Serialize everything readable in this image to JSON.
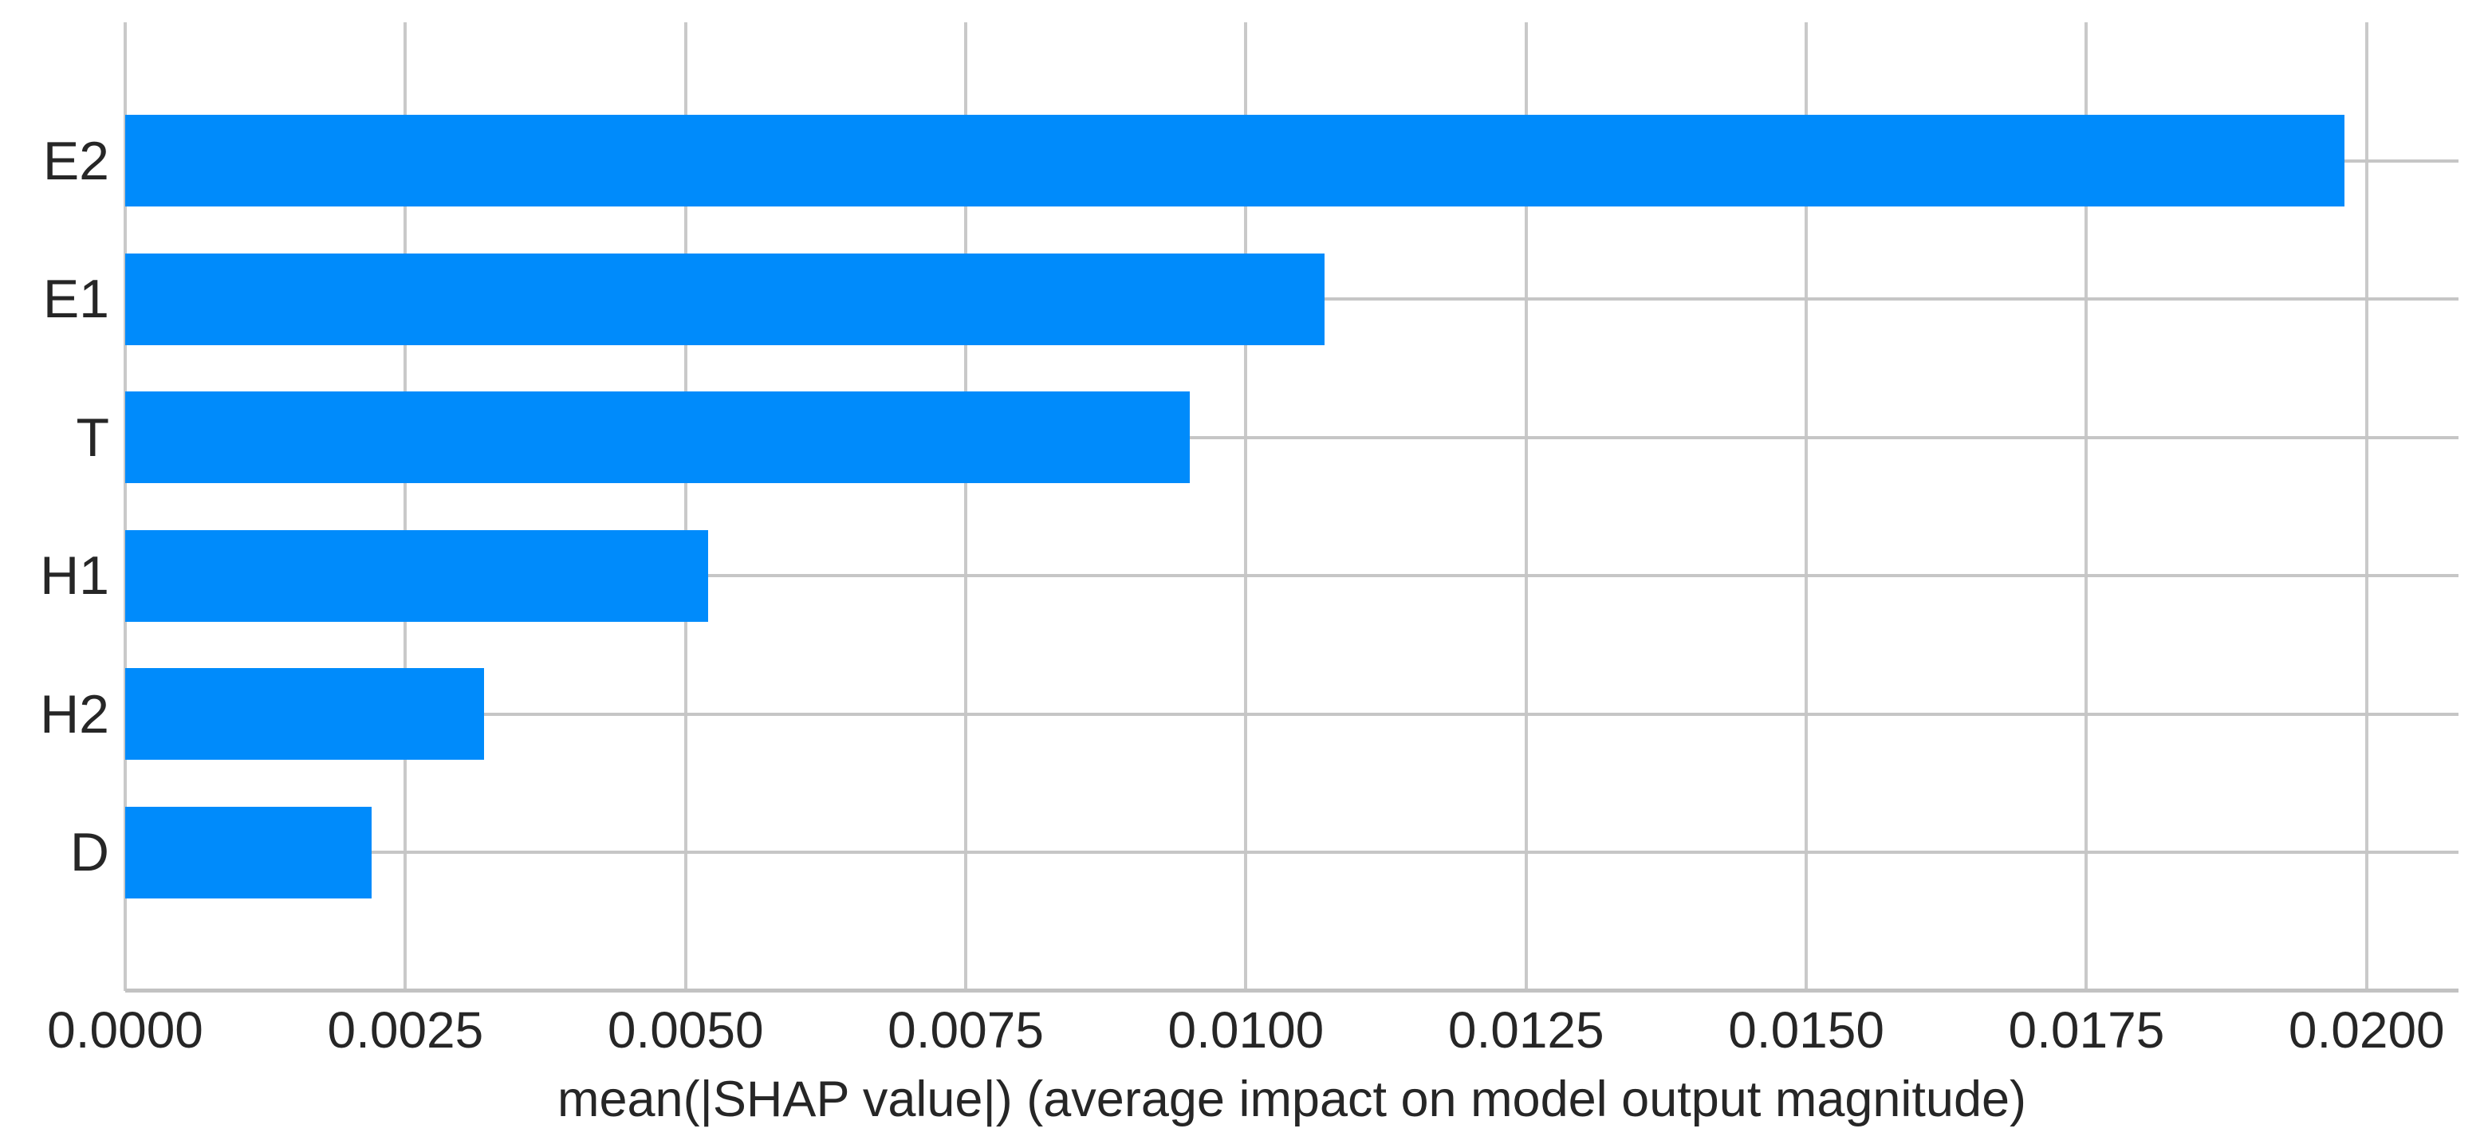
{
  "chart_data": {
    "type": "bar",
    "orientation": "horizontal",
    "title": "",
    "categories": [
      "E2",
      "E1",
      "T",
      "H1",
      "H2",
      "D"
    ],
    "values": [
      0.0198,
      0.0107,
      0.0095,
      0.0052,
      0.0032,
      0.0022
    ],
    "xlabel": "mean(|SHAP value|) (average impact on model output magnitude)",
    "ylabel": "",
    "xlim": [
      0,
      0.02082
    ],
    "xticks": [
      0.0,
      0.0025,
      0.005,
      0.0075,
      0.01,
      0.0125,
      0.015,
      0.0175,
      0.02
    ],
    "xtick_labels": [
      "0.0000",
      "0.0025",
      "0.0050",
      "0.0075",
      "0.0100",
      "0.0125",
      "0.0150",
      "0.0175",
      "0.0200"
    ],
    "grid": true,
    "legend": null,
    "colors": {
      "bar": "#008bfb",
      "gridline": "#c9c9c9",
      "axis_line": "#c2c2c2",
      "text": "#262626",
      "background": "#ffffff"
    }
  }
}
